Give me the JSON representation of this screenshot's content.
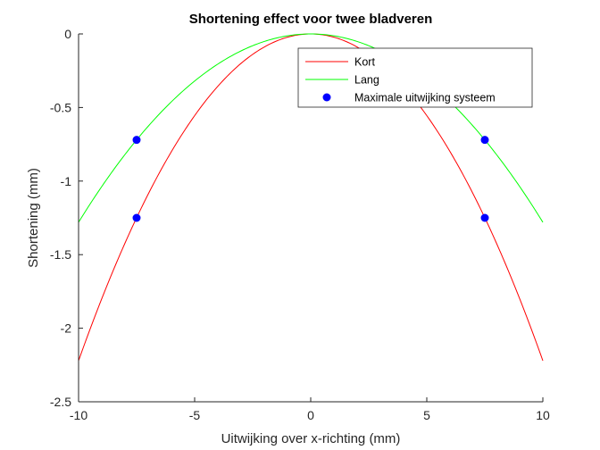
{
  "chart_data": {
    "type": "line",
    "title": "Shortening effect voor twee bladveren",
    "xlabel": "Uitwijking over x-richting (mm)",
    "ylabel": "Shortening (mm)",
    "xlim": [
      -10,
      10
    ],
    "ylim": [
      -2.5,
      0
    ],
    "xticks": [
      -10,
      -5,
      0,
      5,
      10
    ],
    "xtick_labels": [
      "-10",
      "-5",
      "0",
      "5",
      "10"
    ],
    "yticks": [
      -2.5,
      -2,
      -1.5,
      -1,
      -0.5,
      0
    ],
    "ytick_labels": [
      "-2.5",
      "-2",
      "-1.5",
      "-1",
      "-0.5",
      "0"
    ],
    "grid": false,
    "legend_position": "top-right",
    "series": [
      {
        "name": "Kort",
        "type": "line",
        "color": "#ff0000",
        "x": [
          -10,
          -9,
          -8,
          -7,
          -6,
          -5,
          -4,
          -3,
          -2,
          -1,
          0,
          1,
          2,
          3,
          4,
          5,
          6,
          7,
          8,
          9,
          10
        ],
        "y": [
          -2.22,
          -1.8,
          -1.42,
          -1.09,
          -0.8,
          -0.555,
          -0.355,
          -0.2,
          -0.089,
          -0.022,
          0,
          -0.022,
          -0.089,
          -0.2,
          -0.355,
          -0.555,
          -0.8,
          -1.09,
          -1.42,
          -1.8,
          -2.22
        ]
      },
      {
        "name": "Lang",
        "type": "line",
        "color": "#00ff00",
        "x": [
          -10,
          -9,
          -8,
          -7,
          -6,
          -5,
          -4,
          -3,
          -2,
          -1,
          0,
          1,
          2,
          3,
          4,
          5,
          6,
          7,
          8,
          9,
          10
        ],
        "y": [
          -1.28,
          -1.037,
          -0.819,
          -0.627,
          -0.461,
          -0.32,
          -0.205,
          -0.115,
          -0.051,
          -0.013,
          0,
          -0.013,
          -0.051,
          -0.115,
          -0.205,
          -0.32,
          -0.461,
          -0.627,
          -0.819,
          -1.037,
          -1.28
        ]
      },
      {
        "name": "Maximale uitwijking systeem",
        "type": "scatter",
        "color": "#0000ff",
        "x": [
          -7.5,
          -7.5,
          7.5,
          7.5
        ],
        "y": [
          -0.72,
          -1.25,
          -0.72,
          -1.25
        ]
      }
    ]
  }
}
